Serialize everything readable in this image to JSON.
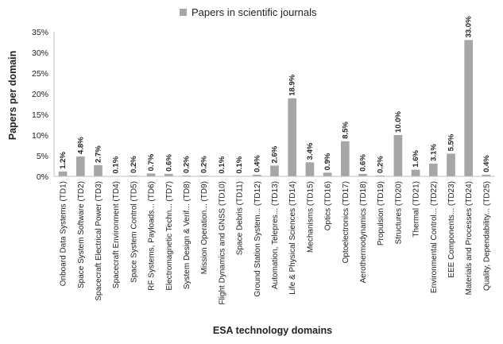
{
  "chart_data": {
    "type": "bar",
    "title": "",
    "xlabel": "ESA technology domains",
    "ylabel": "Papers per domain",
    "ylim": [
      0,
      35
    ],
    "y_ticks": [
      "0%",
      "5%",
      "10%",
      "15%",
      "20%",
      "25%",
      "30%",
      "35%"
    ],
    "grid": false,
    "legend_position": "top",
    "series": [
      {
        "name": "Papers in scientific journals",
        "color": "#a6a6a6",
        "values": [
          1.2,
          4.8,
          2.7,
          0.1,
          0.2,
          0.7,
          0.6,
          0.2,
          0.2,
          0.1,
          0.1,
          0.4,
          2.6,
          18.9,
          3.4,
          0.9,
          8.5,
          0.6,
          0.2,
          10.0,
          1.6,
          3.1,
          5.5,
          33.0,
          0.4
        ]
      }
    ],
    "data_labels": [
      "1.2%",
      "4.8%",
      "2.7%",
      "0.1%",
      "0.2%",
      "0.7%",
      "0.6%",
      "0.2%",
      "0.2%",
      "0.1%",
      "0.1%",
      "0.4%",
      "2.6%",
      "18.9%",
      "3.4%",
      "0.9%",
      "8.5%",
      "0.6%",
      "0.2%",
      "10.0%",
      "1.6%",
      "3.1%",
      "5.5%",
      "33.0%",
      "0.4%"
    ],
    "categories": [
      "Onboard Data Systems (TD1)",
      "Space System Software (TD2)",
      "Spacecraft Electrical Power (TD3)",
      "Spacecraft Environment (TD4)",
      "Space System Control (TD5)",
      "RF Systems, Payloads... (TD6)",
      "Electromagnetic Techn... (TD7)",
      "System Design & Verif... (TD8)",
      "Mission Operation... (TD9)",
      "Flight Dynamics and GNSS (TD10)",
      "Space Debris (TD11)",
      "Ground Station System... (TD12)",
      "Automation, Telepres... (TD13)",
      "Life & Physical Sciences (TD14)",
      "Mechanisms (TD15)",
      "Optics (TD16)",
      "Optoelectronics (TD17)",
      "Aerothermodynamics (TD18)",
      "Propulsion (TD19)",
      "Structures (TD20)",
      "Thermal (TD21)",
      "Environmental Control... (TD22)",
      "EEE Components... (TD23)",
      "Materials and Processes (TD24)",
      "Quality, Dependability... (TD25)"
    ],
    "axis_color": "#bfbfbf"
  }
}
